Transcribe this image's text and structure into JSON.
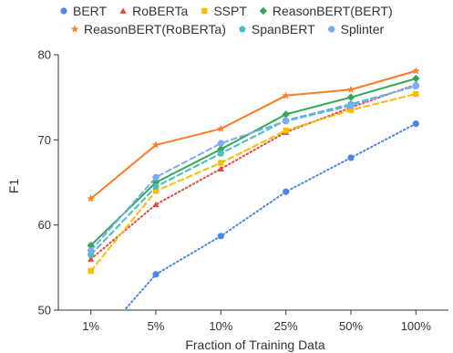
{
  "chart_data": {
    "type": "line",
    "categories": [
      "1%",
      "5%",
      "10%",
      "25%",
      "50%",
      "100%"
    ],
    "xlabel": "Fraction of Training Data",
    "ylabel": "F1",
    "ylim": [
      50,
      80
    ],
    "yticks": [
      50,
      60,
      70,
      80
    ],
    "grid": false,
    "legend_position": "top",
    "series": [
      {
        "name": "BERT",
        "color": "#4a86e8",
        "marker": "circle",
        "dash": "dotted",
        "values": [
          45.5,
          54.2,
          58.7,
          63.9,
          67.9,
          71.9
        ]
      },
      {
        "name": "RoBERTa",
        "color": "#e8453c",
        "marker": "triangle",
        "dash": "dotted",
        "values": [
          56.0,
          62.4,
          66.6,
          70.9,
          73.8,
          76.5
        ]
      },
      {
        "name": "SSPT",
        "color": "#fbbc04",
        "marker": "square",
        "dash": "dashed",
        "values": [
          54.6,
          64.0,
          67.3,
          71.1,
          73.5,
          75.4
        ]
      },
      {
        "name": "ReasonBERT(BERT)",
        "color": "#34a853",
        "marker": "diamond",
        "dash": "solid",
        "values": [
          57.6,
          65.0,
          68.9,
          73.0,
          75.0,
          77.2
        ]
      },
      {
        "name": "ReasonBERT(RoBERTa)",
        "color": "#ff7b24",
        "marker": "star",
        "dash": "solid",
        "values": [
          63.1,
          69.4,
          71.3,
          75.2,
          75.9,
          78.1
        ]
      },
      {
        "name": "SpanBERT",
        "color": "#46bdc6",
        "marker": "pentagon",
        "dash": "dashed",
        "values": [
          56.5,
          64.5,
          68.4,
          72.3,
          74.2,
          76.3
        ]
      },
      {
        "name": "Splinter",
        "color": "#7baaf7",
        "marker": "hexagon",
        "dash": "dashed",
        "values": [
          57.0,
          65.6,
          69.6,
          72.2,
          74.0,
          76.4
        ]
      }
    ]
  }
}
